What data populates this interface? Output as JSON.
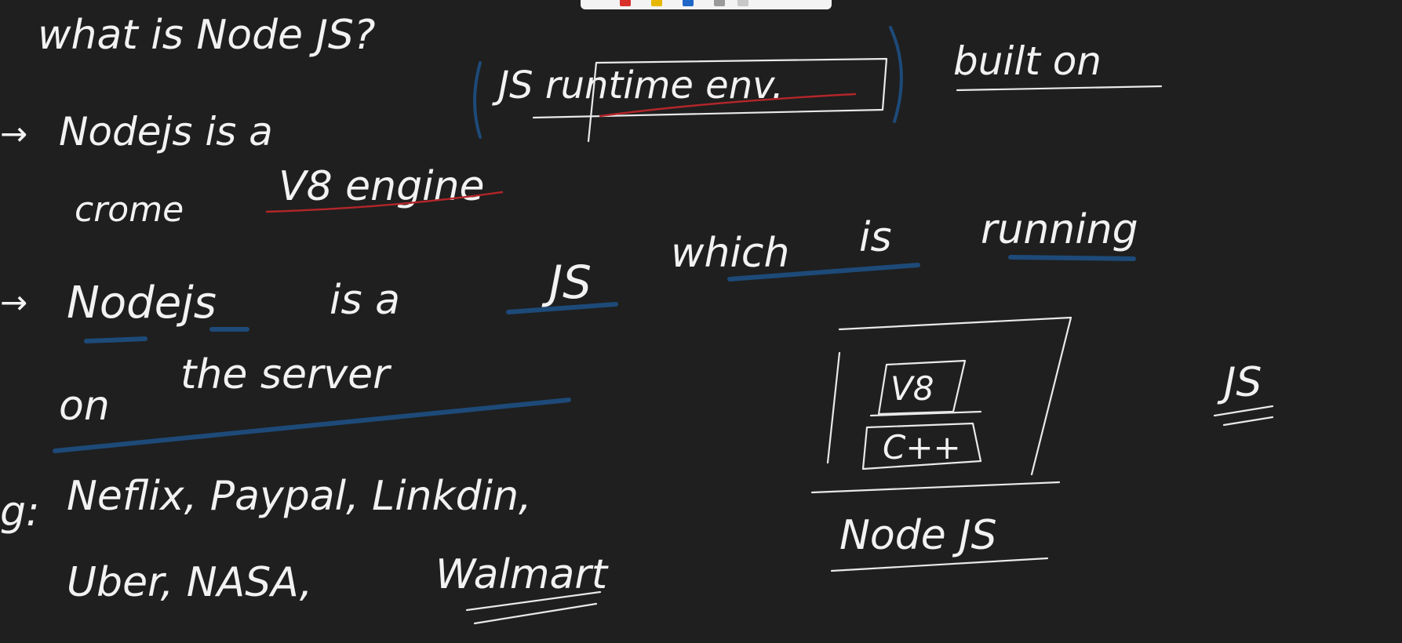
{
  "toolbar": {
    "pens": [
      {
        "name": "red-pen-icon",
        "color": "#d8312b"
      },
      {
        "name": "yellow-pen-icon",
        "color": "#e6b800"
      },
      {
        "name": "blue-pen-icon",
        "color": "#1e66c8"
      },
      {
        "name": "gray-pen-icon",
        "color": "#9a9a9a"
      },
      {
        "name": "light-pen-icon",
        "color": "#c8c8c8"
      }
    ]
  },
  "colors": {
    "background": "#1f1f1f",
    "ink": "#f2f2f2",
    "red_underline": "#b3262a",
    "blue_underline": "#1d4a78"
  },
  "notes": {
    "title": "what is Node JS?",
    "line1": {
      "arrow": "→",
      "text_a": "Nodejs is a",
      "text_b": "JS runtime env.",
      "text_c": "built on"
    },
    "line2": {
      "text_a": "crome",
      "text_b": "V8 engine"
    },
    "line3": {
      "arrow": "→",
      "text_a": "Nodejs",
      "text_b": "is a",
      "text_c": "JS",
      "text_d": "which",
      "text_e": "is",
      "text_f": "running"
    },
    "line4": {
      "text_a": "on",
      "text_b": "the server"
    },
    "line5": {
      "prefix": "g:",
      "text": "Neflix, Paypal, Linkdin,"
    },
    "line6": {
      "text_a": "Uber, NASA,",
      "text_b": "Walmart"
    }
  },
  "diagram": {
    "top_box": "V8",
    "bottom_box": "C++",
    "caption": "Node JS",
    "side_label": "JS"
  }
}
